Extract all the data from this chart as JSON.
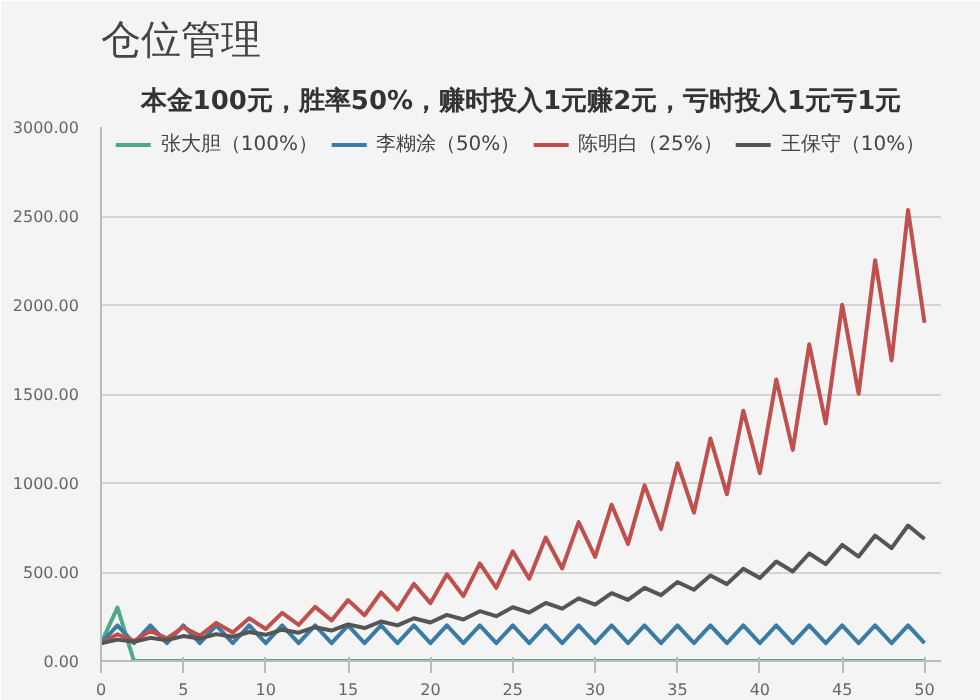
{
  "chart_data": {
    "type": "line",
    "title": "仓位管理",
    "subtitle": "本金100元，胜率50%，赚时投入1元赚2元，亏时投入1元亏1元",
    "x": [
      0,
      1,
      2,
      3,
      4,
      5,
      6,
      7,
      8,
      9,
      10,
      11,
      12,
      13,
      14,
      15,
      16,
      17,
      18,
      19,
      20,
      21,
      22,
      23,
      24,
      25,
      26,
      27,
      28,
      29,
      30,
      31,
      32,
      33,
      34,
      35,
      36,
      37,
      38,
      39,
      40,
      41,
      42,
      43,
      44,
      45,
      46,
      47,
      48,
      49,
      50
    ],
    "series": [
      {
        "name": "张大胆（100%）",
        "color": "#4fa88a",
        "values": [
          100,
          300,
          0,
          0,
          0,
          0,
          0,
          0,
          0,
          0,
          0,
          0,
          0,
          0,
          0,
          0,
          0,
          0,
          0,
          0,
          0,
          0,
          0,
          0,
          0,
          0,
          0,
          0,
          0,
          0,
          0,
          0,
          0,
          0,
          0,
          0,
          0,
          0,
          0,
          0,
          0,
          0,
          0,
          0,
          0,
          0,
          0,
          0,
          0,
          0,
          0
        ]
      },
      {
        "name": "李糊涂（50%）",
        "color": "#3a7ca5",
        "values": [
          100,
          200,
          100,
          200,
          100,
          200,
          100,
          200,
          100,
          200,
          100,
          200,
          100,
          200,
          100,
          200,
          100,
          200,
          100,
          200,
          100,
          200,
          100,
          200,
          100,
          200,
          100,
          200,
          100,
          200,
          100,
          200,
          100,
          200,
          100,
          200,
          100,
          200,
          100,
          200,
          100,
          200,
          100,
          200,
          100,
          200,
          100,
          200,
          100,
          200,
          100
        ]
      },
      {
        "name": "陈明白（25%）",
        "color": "#c0504d",
        "values": [
          100,
          150,
          113,
          169,
          127,
          190,
          142,
          214,
          160,
          240,
          180,
          270,
          203,
          304,
          228,
          342,
          257,
          385,
          289,
          433,
          325,
          487,
          365,
          548,
          411,
          616,
          462,
          694,
          520,
          780,
          585,
          878,
          658,
          987,
          741,
          1111,
          833,
          1250,
          937,
          1406,
          1055,
          1582,
          1186,
          1779,
          1335,
          2002,
          1501,
          2252,
          1689,
          2534,
          1900
        ]
      },
      {
        "name": "王保守（10%）",
        "color": "#555555",
        "values": [
          100,
          120,
          108,
          130,
          117,
          140,
          126,
          151,
          136,
          163,
          147,
          176,
          159,
          190,
          171,
          206,
          185,
          222,
          200,
          240,
          216,
          259,
          233,
          280,
          252,
          302,
          272,
          326,
          294,
          352,
          317,
          381,
          343,
          411,
          370,
          444,
          400,
          480,
          432,
          518,
          466,
          559,
          503,
          604,
          544,
          652,
          587,
          705,
          634,
          761,
          685
        ]
      }
    ],
    "xlim": [
      0,
      51
    ],
    "xticks": [
      0,
      5,
      10,
      15,
      20,
      25,
      30,
      35,
      40,
      45,
      50
    ],
    "ylim": [
      0,
      3000
    ],
    "yticks": [
      {
        "value": 0,
        "label": "0.00"
      },
      {
        "value": 500,
        "label": "500.00"
      },
      {
        "value": 1000,
        "label": "1000.00"
      },
      {
        "value": 1500,
        "label": "1500.00"
      },
      {
        "value": 2000,
        "label": "2000.00"
      },
      {
        "value": 2500,
        "label": "2500.00"
      },
      {
        "value": 3000,
        "label": "3000.00"
      }
    ],
    "grid": "y",
    "legend": "top",
    "marker": "none",
    "line_style": "solid"
  }
}
